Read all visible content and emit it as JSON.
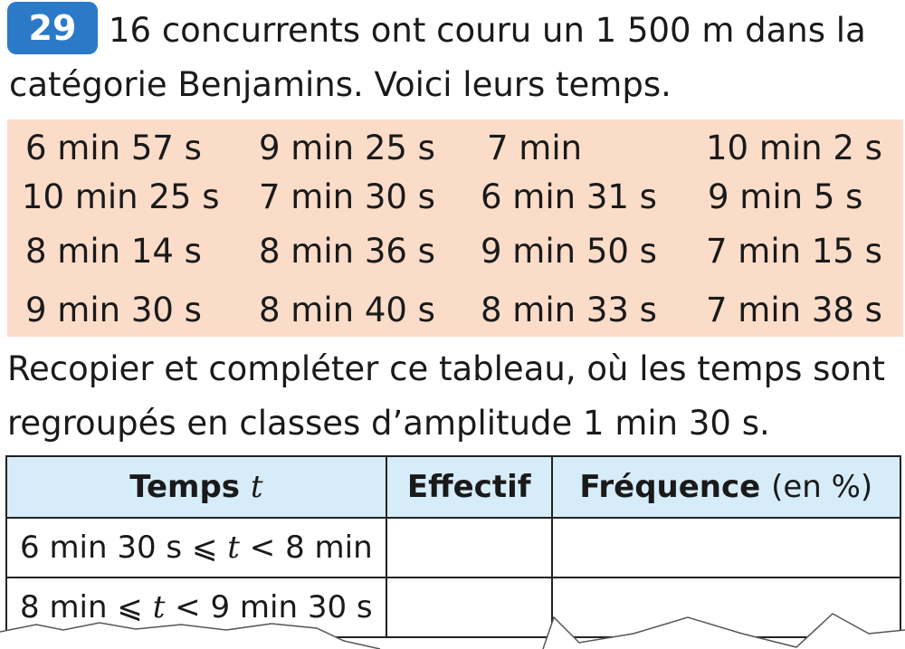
{
  "exercise": {
    "number": "29",
    "intro_line1": "16 concurrents ont couru un 1 500 m dans la",
    "intro_line2": "catégorie Benjamins. Voici leurs temps."
  },
  "times": [
    [
      "6 min 57 s",
      "9 min 25 s",
      "7 min",
      "10 min 2 s"
    ],
    [
      "10 min 25 s",
      "7 min 30 s",
      "6 min 31 s",
      "9 min 5 s"
    ],
    [
      "8 min 14 s",
      "8 min 36 s",
      "9 min 50 s",
      "7 min 15 s"
    ],
    [
      "9 min 30 s",
      "8 min 40 s",
      "8 min 33 s",
      "7 min 38 s"
    ]
  ],
  "instruction": {
    "line1": "Recopier et compléter ce tableau, où les temps sont",
    "line2": "regroupés en classes d’amplitude 1 min 30 s."
  },
  "table": {
    "headers": {
      "time_label": "Temps",
      "time_var": "t",
      "count": "Effectif",
      "frequency": "Fréquence",
      "frequency_unit": "(en %)"
    },
    "rows": [
      {
        "left": "6 min 30 s",
        "op1": "⩽",
        "var": "t",
        "op2": "<",
        "right": "8 min",
        "effectif": "",
        "frequence": ""
      },
      {
        "left": "8 min",
        "op1": "⩽",
        "var": "t",
        "op2": "<",
        "right": "9 min 30 s",
        "effectif": "",
        "frequence": ""
      }
    ]
  },
  "colors": {
    "badge": "#2a7ac8",
    "times_background": "#fbdcc9",
    "table_header": "#d6ecf8"
  }
}
